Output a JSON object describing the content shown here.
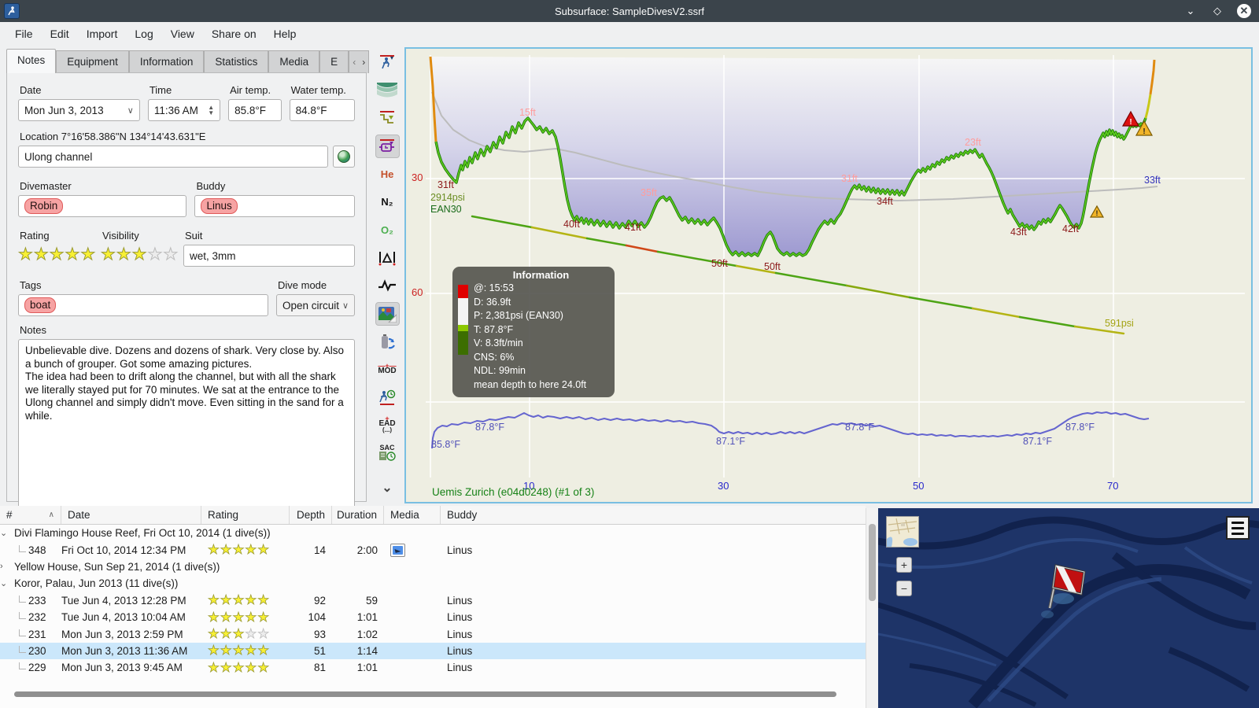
{
  "window": {
    "title": "Subsurface: SampleDivesV2.ssrf"
  },
  "menu": {
    "items": [
      "File",
      "Edit",
      "Import",
      "Log",
      "View",
      "Share on",
      "Help"
    ]
  },
  "tabs": {
    "items": [
      "Notes",
      "Equipment",
      "Information",
      "Statistics",
      "Media",
      "E"
    ],
    "active": "Notes"
  },
  "form": {
    "date": {
      "label": "Date",
      "value": "Mon Jun 3, 2013"
    },
    "time": {
      "label": "Time",
      "value": "11:36 AM"
    },
    "air_temp": {
      "label": "Air temp.",
      "value": "85.8°F"
    },
    "water_temp": {
      "label": "Water temp.",
      "value": "84.8°F"
    },
    "location": {
      "label": "Location 7°16'58.386\"N 134°14'43.631\"E",
      "value": "Ulong channel"
    },
    "divemaster": {
      "label": "Divemaster",
      "value": "Robin"
    },
    "buddy": {
      "label": "Buddy",
      "value": "Linus"
    },
    "rating": {
      "label": "Rating",
      "value": 5,
      "max": 5
    },
    "visibility": {
      "label": "Visibility",
      "value": 3,
      "max": 5
    },
    "suit": {
      "label": "Suit",
      "value": "wet, 3mm"
    },
    "tags": {
      "label": "Tags",
      "value": "boat"
    },
    "dive_mode": {
      "label": "Dive mode",
      "value": "Open circuit"
    },
    "notes": {
      "label": "Notes",
      "value": "Unbelievable dive. Dozens and dozens of shark. Very close by. Also a bunch of grouper. Got some amazing pictures.\nThe idea had been to drift along the channel, but with all the shark we literally stayed put for 70 minutes. We sat at the entrance to the Ulong channel and simply didn't move. Even sitting in the sand for a while."
    }
  },
  "toolbar": {
    "he": "He",
    "n2": "N₂",
    "o2": "O₂",
    "mod": "MOD",
    "ead": "EAD",
    "ead2": "(...)",
    "sac": "SAC"
  },
  "profile": {
    "depth_ticks": [
      "30",
      "60"
    ],
    "time_ticks": [
      "10",
      "30",
      "50",
      "70"
    ],
    "labels": [
      {
        "text": "31ft"
      },
      {
        "text": "2914psi"
      },
      {
        "text": "EAN30"
      },
      {
        "text": "15ft"
      },
      {
        "text": "40ft"
      },
      {
        "text": "41ft"
      },
      {
        "text": "35ft"
      },
      {
        "text": "50ft"
      },
      {
        "text": "50ft"
      },
      {
        "text": "31ft"
      },
      {
        "text": "34ft"
      },
      {
        "text": "23ft"
      },
      {
        "text": "43ft"
      },
      {
        "text": "42ft"
      },
      {
        "text": "33ft"
      },
      {
        "text": "591psi"
      },
      {
        "text": "85.8°F"
      },
      {
        "text": "87.8°F"
      },
      {
        "text": "87.1°F"
      },
      {
        "text": "87.8°F"
      },
      {
        "text": "87.1°F"
      },
      {
        "text": "87.8°F"
      }
    ],
    "info_box": {
      "title": "Information",
      "rows": [
        "@: 15:53",
        "D: 36.9ft",
        "P: 2,381psi (EAN30)",
        "T: 87.8°F",
        "V: 8.3ft/min",
        "CNS: 6%",
        "NDL: 99min",
        "mean depth to here 24.0ft"
      ]
    },
    "device": "Uemis Zurich (e04d0248) (#1 of 3)"
  },
  "dive_list": {
    "columns": [
      "#",
      "Date",
      "Rating",
      "Depth",
      "Duration",
      "Media",
      "Buddy"
    ],
    "rows": [
      {
        "type": "trip",
        "expander": "⌄",
        "label": "Divi Flamingo House Reef, Fri Oct 10, 2014 (1 dive(s))"
      },
      {
        "type": "dive",
        "num": "348",
        "date": "Fri Oct 10, 2014 12:34 PM",
        "rating": 5,
        "depth": "14",
        "duration": "2:00",
        "media": true,
        "buddy": "Linus"
      },
      {
        "type": "trip",
        "expander": "›",
        "label": "Yellow House, Sun Sep 21, 2014 (1 dive(s))"
      },
      {
        "type": "trip",
        "expander": "⌄",
        "label": "Koror, Palau, Jun 2013 (11 dive(s))"
      },
      {
        "type": "dive",
        "num": "233",
        "date": "Tue Jun 4, 2013 12:28 PM",
        "rating": 5,
        "depth": "92",
        "duration": "59",
        "buddy": "Linus"
      },
      {
        "type": "dive",
        "num": "232",
        "date": "Tue Jun 4, 2013 10:04 AM",
        "rating": 5,
        "depth": "104",
        "duration": "1:01",
        "buddy": "Linus"
      },
      {
        "type": "dive",
        "num": "231",
        "date": "Mon Jun 3, 2013 2:59 PM",
        "rating": 3,
        "depth": "93",
        "duration": "1:02",
        "buddy": "Linus"
      },
      {
        "type": "dive",
        "num": "230",
        "date": "Mon Jun 3, 2013 11:36 AM",
        "rating": 5,
        "depth": "51",
        "duration": "1:14",
        "buddy": "Linus",
        "selected": true
      },
      {
        "type": "dive",
        "num": "229",
        "date": "Mon Jun 3, 2013 9:45 AM",
        "rating": 5,
        "depth": "81",
        "duration": "1:01",
        "buddy": "Linus"
      }
    ]
  },
  "map": {
    "zoom_in": "+",
    "zoom_out": "−"
  },
  "colors": {
    "accent_blue": "#79bfe2",
    "selection": "#cbe7fb",
    "star": "#f8f033",
    "pill": "#f6a3a3",
    "profile_green": "#43b210"
  }
}
